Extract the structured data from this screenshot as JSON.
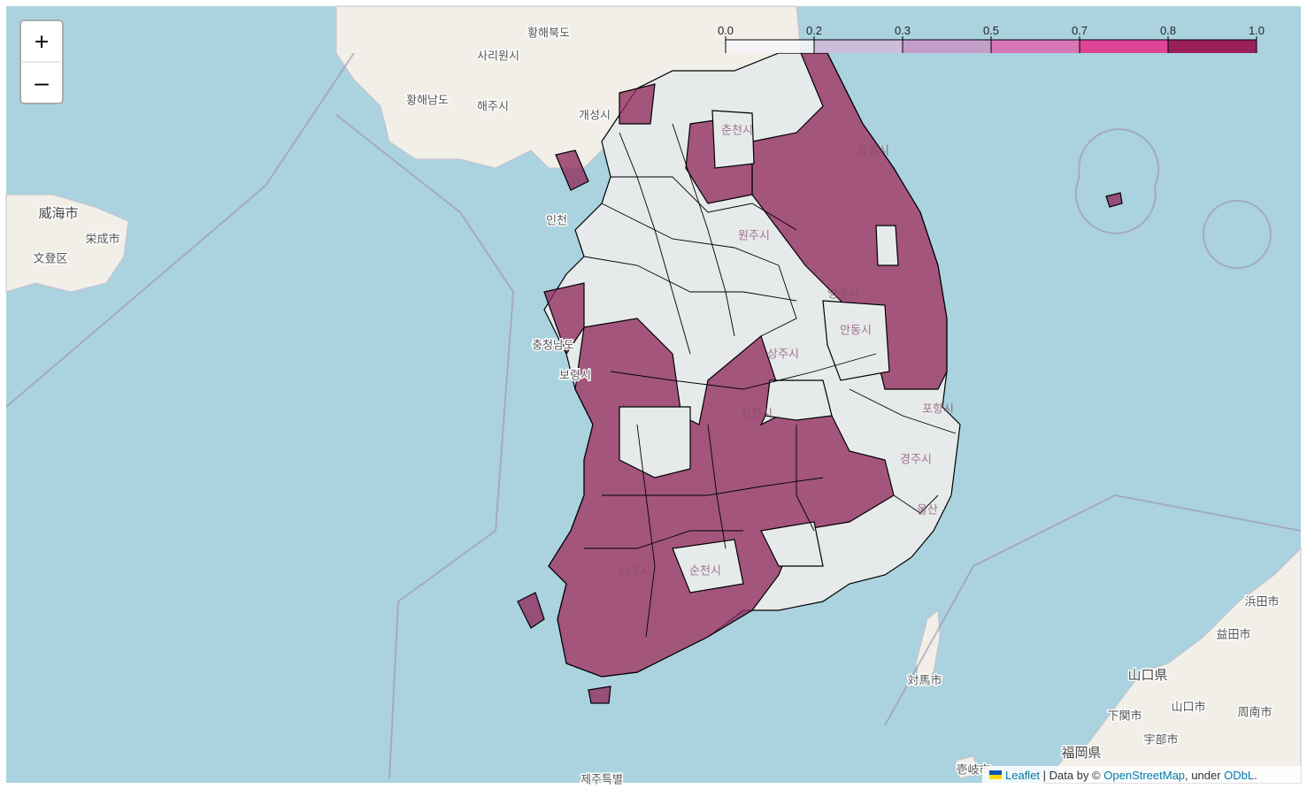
{
  "map": {
    "legend": {
      "ticks": [
        {
          "value": 0,
          "label": "0.0"
        },
        0.2,
        0.3,
        0.5,
        0.7,
        0.8,
        {
          "value": 1,
          "label": "1.0"
        }
      ],
      "colors": [
        "#f7f4f9",
        "#d4b9da",
        "#c994c7",
        "#df65b0",
        "#e7298a",
        "#980043"
      ]
    },
    "place_labels": [
      "황해북도",
      "사리원시",
      "황해남도",
      "해주시",
      "개성시",
      "威海市",
      "栄成市",
      "文登区",
      "인천",
      "충청남도",
      "보령시",
      "강릉시",
      "영주시",
      "안동시",
      "상주시",
      "김천시",
      "포항시",
      "경주시",
      "울산",
      "순천시",
      "나주시",
      "춘천시",
      "원주시",
      "対馬市",
      "浜田市",
      "益田市",
      "山口県",
      "山口市",
      "周南市",
      "下関市",
      "宇部市",
      "福岡県",
      "壱岐市",
      "제주특별"
    ],
    "controls": {
      "zoom_in": "+",
      "zoom_out": "–"
    },
    "attribution": {
      "leaflet": "Leaflet",
      "data_by": " | Data by © ",
      "osm": "OpenStreetMap",
      "under": ", under ",
      "license": "ODbL",
      "end": "."
    }
  }
}
